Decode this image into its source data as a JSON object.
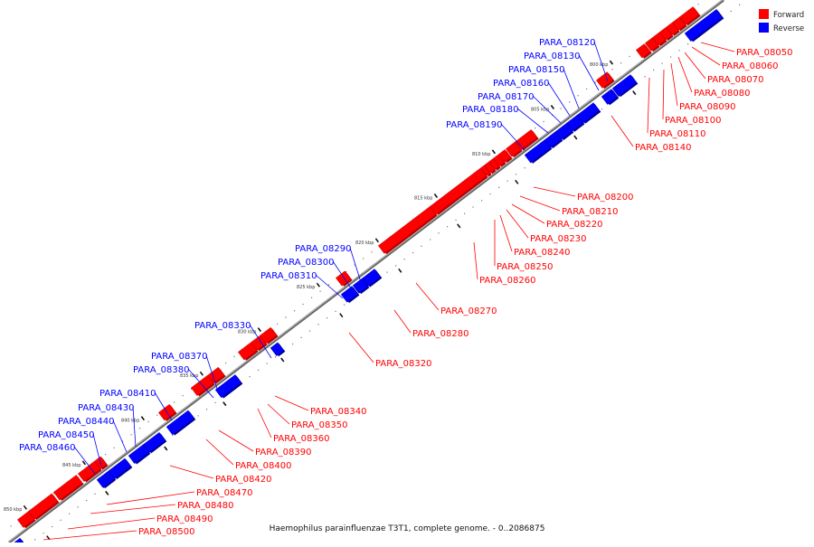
{
  "colors": {
    "forward": "#ff0000",
    "forward_shade": "#b80000",
    "reverse": "#0000ff",
    "reverse_shade": "#000099",
    "axis": "#555555",
    "tick": "#111111"
  },
  "legend": {
    "forward_label": "Forward",
    "reverse_label": "Reverse"
  },
  "caption": "Haemophilus parainfluenzae T3T1, complete genome. - 0..2086875",
  "position_marks": [
    "800 kbp",
    "805 kbp",
    "810 kbp",
    "815 kbp",
    "820 kbp",
    "825 kbp",
    "830 kbp",
    "835 kbp",
    "840 kbp",
    "845 kbp",
    "850 kbp"
  ],
  "forward_genes": [
    "PARA_08050",
    "PARA_08060",
    "PARA_08070",
    "PARA_08080",
    "PARA_08090",
    "PARA_08100",
    "PARA_08110",
    "PARA_08140",
    "PARA_08200",
    "PARA_08210",
    "PARA_08220",
    "PARA_08230",
    "PARA_08240",
    "PARA_08250",
    "PARA_08260",
    "PARA_08270",
    "PARA_08280",
    "PARA_08320",
    "PARA_08340",
    "PARA_08350",
    "PARA_08360",
    "PARA_08390",
    "PARA_08400",
    "PARA_08420",
    "PARA_08470",
    "PARA_08480",
    "PARA_08490",
    "PARA_08500"
  ],
  "reverse_genes": [
    "PARA_08120",
    "PARA_08130",
    "PARA_08150",
    "PARA_08160",
    "PARA_08170",
    "PARA_08180",
    "PARA_08190",
    "PARA_08290",
    "PARA_08300",
    "PARA_08310",
    "PARA_08330",
    "PARA_08370",
    "PARA_08380",
    "PARA_08410",
    "PARA_08430",
    "PARA_08440",
    "PARA_08450",
    "PARA_08460"
  ]
}
